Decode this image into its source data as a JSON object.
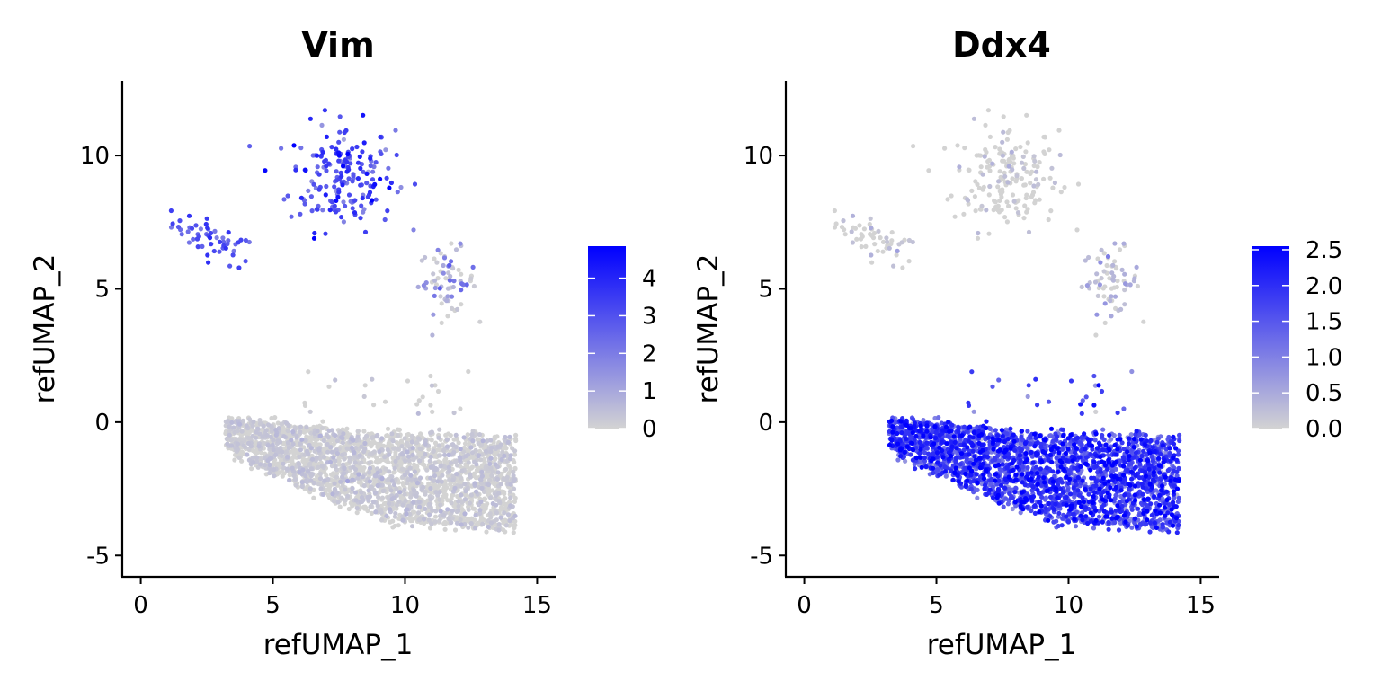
{
  "chart_data": [
    {
      "type": "scatter",
      "title": "Vim",
      "xlabel": "refUMAP_1",
      "ylabel": "refUMAP_2",
      "xlim": [
        -0.7,
        15.7
      ],
      "ylim": [
        -5.8,
        12.8
      ],
      "xticks": [
        0,
        5,
        10,
        15
      ],
      "yticks": [
        -5,
        0,
        5,
        10
      ],
      "xtick_labels": [
        "0",
        "5",
        "10",
        "15"
      ],
      "ytick_labels": [
        "-5",
        "0",
        "5",
        "10"
      ],
      "color_low": "#d3d3d3",
      "color_high": "#0000ff",
      "legend": {
        "position": "right",
        "min": 0,
        "max": 4.85,
        "ticks": [
          0,
          1,
          2,
          3,
          4
        ],
        "tick_labels": [
          "0",
          "1",
          "2",
          "3",
          "4"
        ]
      },
      "clusters": [
        {
          "name": "cluster-upper-left",
          "cx": 2.8,
          "cy": 6.8,
          "spread_x": 0.8,
          "spread_y": 0.35,
          "slope": -0.42,
          "count": 55,
          "value_mean": 3.0,
          "value_sd": 0.6
        },
        {
          "name": "cluster-top",
          "cx": 7.6,
          "cy": 9.2,
          "spread_x": 1.0,
          "spread_y": 1.0,
          "slope": 0,
          "count": 190,
          "value_mean": 3.1,
          "value_sd": 0.8
        },
        {
          "name": "cluster-right",
          "cx": 11.6,
          "cy": 5.3,
          "spread_x": 0.55,
          "spread_y": 0.6,
          "slope": 0,
          "count": 70,
          "value_mean": 0.6,
          "value_sd": 0.9
        },
        {
          "name": "cluster-main",
          "x_from": 3.2,
          "x_to": 14.2,
          "count": 2600,
          "value_mean": 0.05,
          "value_sd": 0.25
        }
      ]
    },
    {
      "type": "scatter",
      "title": "Ddx4",
      "xlabel": "refUMAP_1",
      "ylabel": "refUMAP_2",
      "xlim": [
        -0.7,
        15.7
      ],
      "ylim": [
        -5.8,
        12.8
      ],
      "xticks": [
        0,
        5,
        10,
        15
      ],
      "yticks": [
        -5,
        0,
        5,
        10
      ],
      "xtick_labels": [
        "0",
        "5",
        "10",
        "15"
      ],
      "ytick_labels": [
        "-5",
        "0",
        "5",
        "10"
      ],
      "color_low": "#d3d3d3",
      "color_high": "#0000ff",
      "legend": {
        "position": "right",
        "min": 0,
        "max": 2.55,
        "ticks": [
          0,
          0.5,
          1,
          1.5,
          2,
          2.5
        ],
        "tick_labels": [
          "0.0",
          "0.5",
          "1.0",
          "1.5",
          "2.0",
          "2.5"
        ]
      },
      "clusters": [
        {
          "name": "cluster-upper-left",
          "cx": 2.8,
          "cy": 6.8,
          "spread_x": 0.8,
          "spread_y": 0.35,
          "slope": -0.42,
          "count": 55,
          "value_mean": 0.05,
          "value_sd": 0.2
        },
        {
          "name": "cluster-top",
          "cx": 7.6,
          "cy": 9.2,
          "spread_x": 1.0,
          "spread_y": 1.0,
          "slope": 0,
          "count": 190,
          "value_mean": 0.05,
          "value_sd": 0.15
        },
        {
          "name": "cluster-right",
          "cx": 11.6,
          "cy": 5.3,
          "spread_x": 0.55,
          "spread_y": 0.6,
          "slope": 0,
          "count": 70,
          "value_mean": 0.15,
          "value_sd": 0.4
        },
        {
          "name": "cluster-main",
          "x_from": 3.2,
          "x_to": 14.2,
          "count": 2600,
          "value_mean": 1.7,
          "value_sd": 0.55
        }
      ]
    }
  ]
}
